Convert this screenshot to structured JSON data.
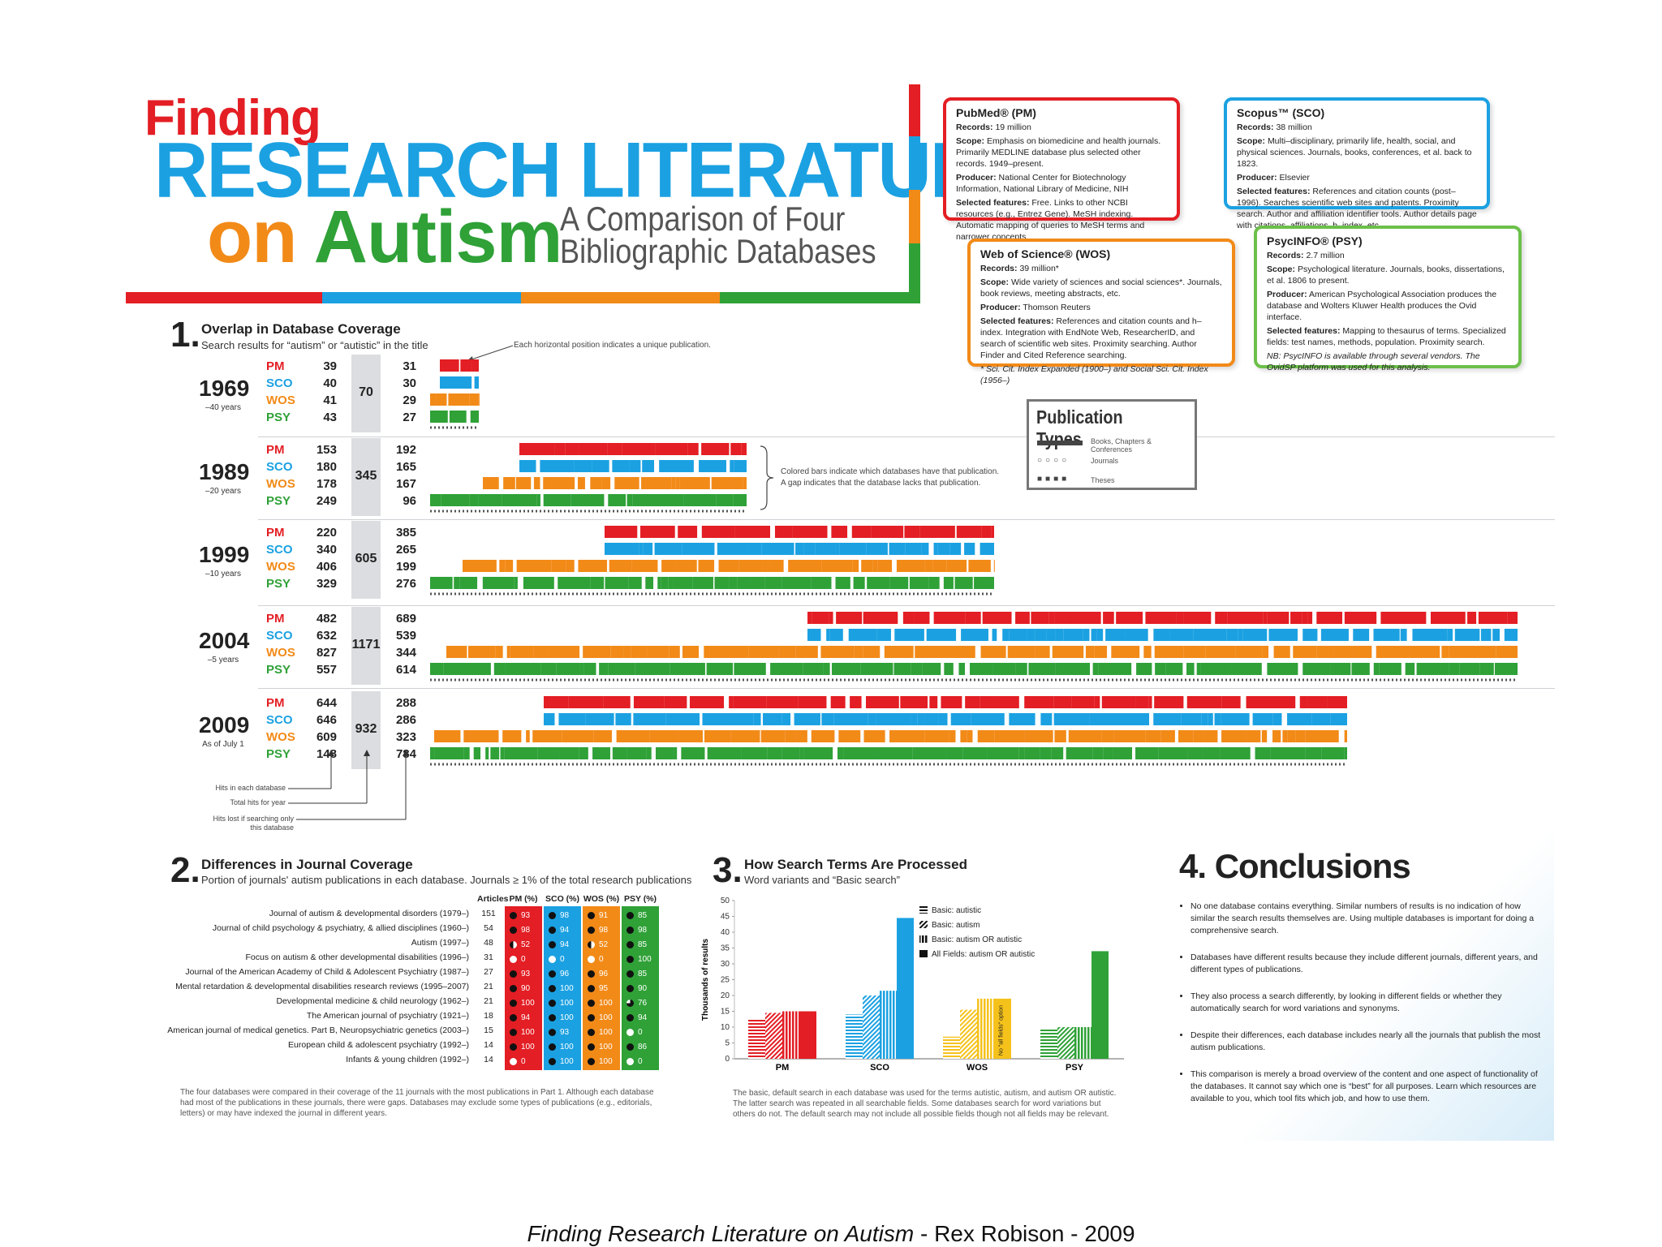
{
  "title": {
    "finding": "Finding",
    "research": "RESEARCH LITERATURE",
    "on": "on",
    "autism": "Autism",
    "subtitle_line1": "A Comparison of Four",
    "subtitle_line2": "Bibliographic Databases"
  },
  "colors": {
    "red": "#e31e24",
    "blue": "#1ba1e2",
    "orange": "#f28a18",
    "green": "#2fa137"
  },
  "databases": [
    {
      "name": "PubMed® (PM)",
      "color": "#e31e24",
      "records_label": "Records:",
      "records": "19 million",
      "scope_label": "Scope:",
      "scope": "Emphasis on biomedicine and health journals. Primarily MEDLINE database plus selected other records. 1949–present.",
      "producer_label": "Producer:",
      "producer": "National Center for Biotechnology Information, National Library of Medicine, NIH",
      "features_label": "Selected features:",
      "features": "Free. Links to other NCBI resources (e.g., Entrez Gene). MeSH indexing. Automatic mapping of queries to MeSH terms and narrower concepts.",
      "note": ""
    },
    {
      "name": "Scopus™ (SCO)",
      "color": "#1ba1e2",
      "records_label": "Records:",
      "records": "38 million",
      "scope_label": "Scope:",
      "scope": "Multi–disciplinary, primarily life, health, social, and physical sciences. Journals, books, conferences, et al. back to 1823.",
      "producer_label": "Producer:",
      "producer": "Elsevier",
      "features_label": "Selected features:",
      "features": "References and citation counts (post–1996). Searches scientific web sites and patents. Proximity search. Author and affiliation identifier tools. Author details page with citations, affiliations, h–index, etc.",
      "note": ""
    },
    {
      "name": "Web of Science® (WOS)",
      "color": "#f28a18",
      "records_label": "Records:",
      "records": "39 million*",
      "scope_label": "Scope:",
      "scope": "Wide variety of sciences and social sciences*. Journals, book reviews, meeting abstracts, etc.",
      "producer_label": "Producer:",
      "producer": "Thomson Reuters",
      "features_label": "Selected features:",
      "features": "References and citation counts and h–index. Integration with EndNote Web, ResearcherID, and search of scientific web sites. Proximity searching. Author Finder and Cited Reference searching.",
      "note": "* Sci. Cit. Index Expanded (1900–) and Social Sci. Cit. Index (1956–)"
    },
    {
      "name": "PsycINFO® (PSY)",
      "color": "#6cc04a",
      "records_label": "Records:",
      "records": "2.7 million",
      "scope_label": "Scope:",
      "scope": "Psychological literature. Journals, books, dissertations, et al. 1806 to present.",
      "producer_label": "Producer:",
      "producer": "American Psychological Association produces the database and Wolters Kluwer Health produces the Ovid interface.",
      "features_label": "Selected features:",
      "features": "Mapping to thesaurus of terms. Specialized fields: test names, methods, population. Proximity search.",
      "note": "NB: PsycINFO is available through several vendors. The OvidSP platform was used for this analysis."
    }
  ],
  "section1": {
    "num": "1.",
    "title": "Overlap in Database Coverage",
    "subtitle": "Search results for “autism” or “autistic” in the title",
    "annotation_top": "Each horizontal position indicates a unique publication.",
    "annotation_mid1": "Colored bars indicate which databases have that publication.",
    "annotation_mid2": "A gap indicates that the database lacks that publication.",
    "legend_hits": "Hits in each database",
    "legend_total": "Total hits for year",
    "legend_lost1": "Hits lost if searching only",
    "legend_lost2": "this database",
    "db_labels": [
      "PM",
      "SCO",
      "WOS",
      "PSY"
    ],
    "years": [
      {
        "year": "1969",
        "note": "–40 years",
        "hits": [
          "39",
          "40",
          "41",
          "43"
        ],
        "total": "70",
        "lost": [
          "31",
          "30",
          "29",
          "27"
        ]
      },
      {
        "year": "1989",
        "note": "–20 years",
        "hits": [
          "153",
          "180",
          "178",
          "249"
        ],
        "total": "345",
        "lost": [
          "192",
          "165",
          "167",
          "96"
        ]
      },
      {
        "year": "1999",
        "note": "–10 years",
        "hits": [
          "220",
          "340",
          "406",
          "329"
        ],
        "total": "605",
        "lost": [
          "385",
          "265",
          "199",
          "276"
        ]
      },
      {
        "year": "2004",
        "note": "–5 years",
        "hits": [
          "482",
          "632",
          "827",
          "557"
        ],
        "total": "1171",
        "lost": [
          "689",
          "539",
          "344",
          "614"
        ]
      },
      {
        "year": "2009",
        "note": "As of July 1",
        "hits": [
          "644",
          "646",
          "609",
          "148"
        ],
        "total": "932",
        "lost": [
          "288",
          "286",
          "323",
          "784"
        ]
      }
    ]
  },
  "pubtypes": {
    "title": "Publication Types",
    "items": [
      "Books, Chapters & Conferences",
      "Journals",
      "Theses"
    ]
  },
  "section2": {
    "num": "2.",
    "title": "Differences in Journal Coverage",
    "subtitle": "Portion of journals' autism publications in each database. Journals ≥ 1% of the total research publications",
    "headers": [
      "Articles",
      "PM (%)",
      "SCO (%)",
      "WOS (%)",
      "PSY (%)"
    ],
    "rows": [
      {
        "journal": "Journal of autism & developmental disorders (1979–)",
        "articles": "151",
        "pm": "93",
        "sco": "98",
        "wos": "91",
        "psy": "85"
      },
      {
        "journal": "Journal of child psychology & psychiatry, & allied disciplines (1960–)",
        "articles": "54",
        "pm": "98",
        "sco": "94",
        "wos": "98",
        "psy": "98"
      },
      {
        "journal": "Autism (1997–)",
        "articles": "48",
        "pm": "52",
        "sco": "94",
        "wos": "52",
        "psy": "85"
      },
      {
        "journal": "Focus on autism & other developmental disabilities (1996–)",
        "articles": "31",
        "pm": "0",
        "sco": "0",
        "wos": "0",
        "psy": "100"
      },
      {
        "journal": "Journal of the American Academy of Child & Adolescent Psychiatry (1987–)",
        "articles": "27",
        "pm": "93",
        "sco": "96",
        "wos": "96",
        "psy": "85"
      },
      {
        "journal": "Mental retardation & developmental disabilities research reviews (1995–2007)",
        "articles": "21",
        "pm": "90",
        "sco": "100",
        "wos": "95",
        "psy": "90"
      },
      {
        "journal": "Developmental medicine & child neurology (1962–)",
        "articles": "21",
        "pm": "100",
        "sco": "100",
        "wos": "100",
        "psy": "76"
      },
      {
        "journal": "The American journal of psychiatry (1921–)",
        "articles": "18",
        "pm": "94",
        "sco": "100",
        "wos": "100",
        "psy": "94"
      },
      {
        "journal": "American journal of medical genetics. Part B, Neuropsychiatric genetics (2003–)",
        "articles": "15",
        "pm": "100",
        "sco": "93",
        "wos": "100",
        "psy": "0"
      },
      {
        "journal": "European child & adolescent psychiatry (1992–)",
        "articles": "14",
        "pm": "100",
        "sco": "100",
        "wos": "100",
        "psy": "86"
      },
      {
        "journal": "Infants & young children (1992–)",
        "articles": "14",
        "pm": "0",
        "sco": "100",
        "wos": "100",
        "psy": "0"
      }
    ],
    "footnote": "The four databases were compared in their coverage of the 11 journals with the most publications in Part 1. Although each database had most of the publications in these journals, there were gaps. Databases may exclude some types of publications (e.g., editorials, letters) or may have indexed the journal in different years."
  },
  "section3": {
    "num": "3.",
    "title": "How Search Terms Are Processed",
    "subtitle": "Word variants and “Basic search”",
    "footnote": "The basic, default search in each database was used for the terms autistic, autism, and autism OR autistic. The latter search was repeated in all searchable fields. Some databases search for word variations but others do not. The default search may not include all possible fields though not all fields may be relevant.",
    "wos_note": "No \"all fields\" option"
  },
  "chart_data": {
    "type": "bar",
    "title": "How Search Terms Are Processed",
    "ylabel": "Thousands of results",
    "xlabel": "",
    "ylim": [
      0,
      50
    ],
    "yticks": [
      0,
      5,
      10,
      15,
      20,
      25,
      30,
      35,
      40,
      45,
      50
    ],
    "categories": [
      "PM",
      "SCO",
      "WOS",
      "PSY"
    ],
    "series": [
      {
        "name": "Basic: autistic",
        "values": [
          12.5,
          14,
          7,
          9.5
        ]
      },
      {
        "name": "Basic: autism",
        "values": [
          14.5,
          20,
          15.5,
          10
        ]
      },
      {
        "name": "Basic: autism OR autistic",
        "values": [
          15,
          21.5,
          19,
          10
        ]
      },
      {
        "name": "All Fields: autism OR autistic",
        "values": [
          15,
          44.5,
          19,
          34
        ]
      }
    ],
    "legend_position": "top-left"
  },
  "conclusions": {
    "title": "4. Conclusions",
    "items": [
      "No one database contains everything. Similar numbers of results is no indication of how similar the search results themselves are. Using multiple databases is important for doing a comprehensive search.",
      "Databases have different results because they include different journals, different years, and different types of publications.",
      "They also process a search differently, by looking in different fields or whether they automatically search for word variations and synonyms.",
      "Despite their differences, each database includes nearly all the journals that publish the most autism publications.",
      "This comparison is merely a broad overview of the content and one aspect of functionality of the databases. It cannot say which one is “best” for all purposes. Learn which resources are available to you, which tool fits which job, and how to use them."
    ]
  },
  "caption": {
    "italic": "Finding Research Literature on Autism",
    "rest": " - Rex Robison - 2009"
  }
}
